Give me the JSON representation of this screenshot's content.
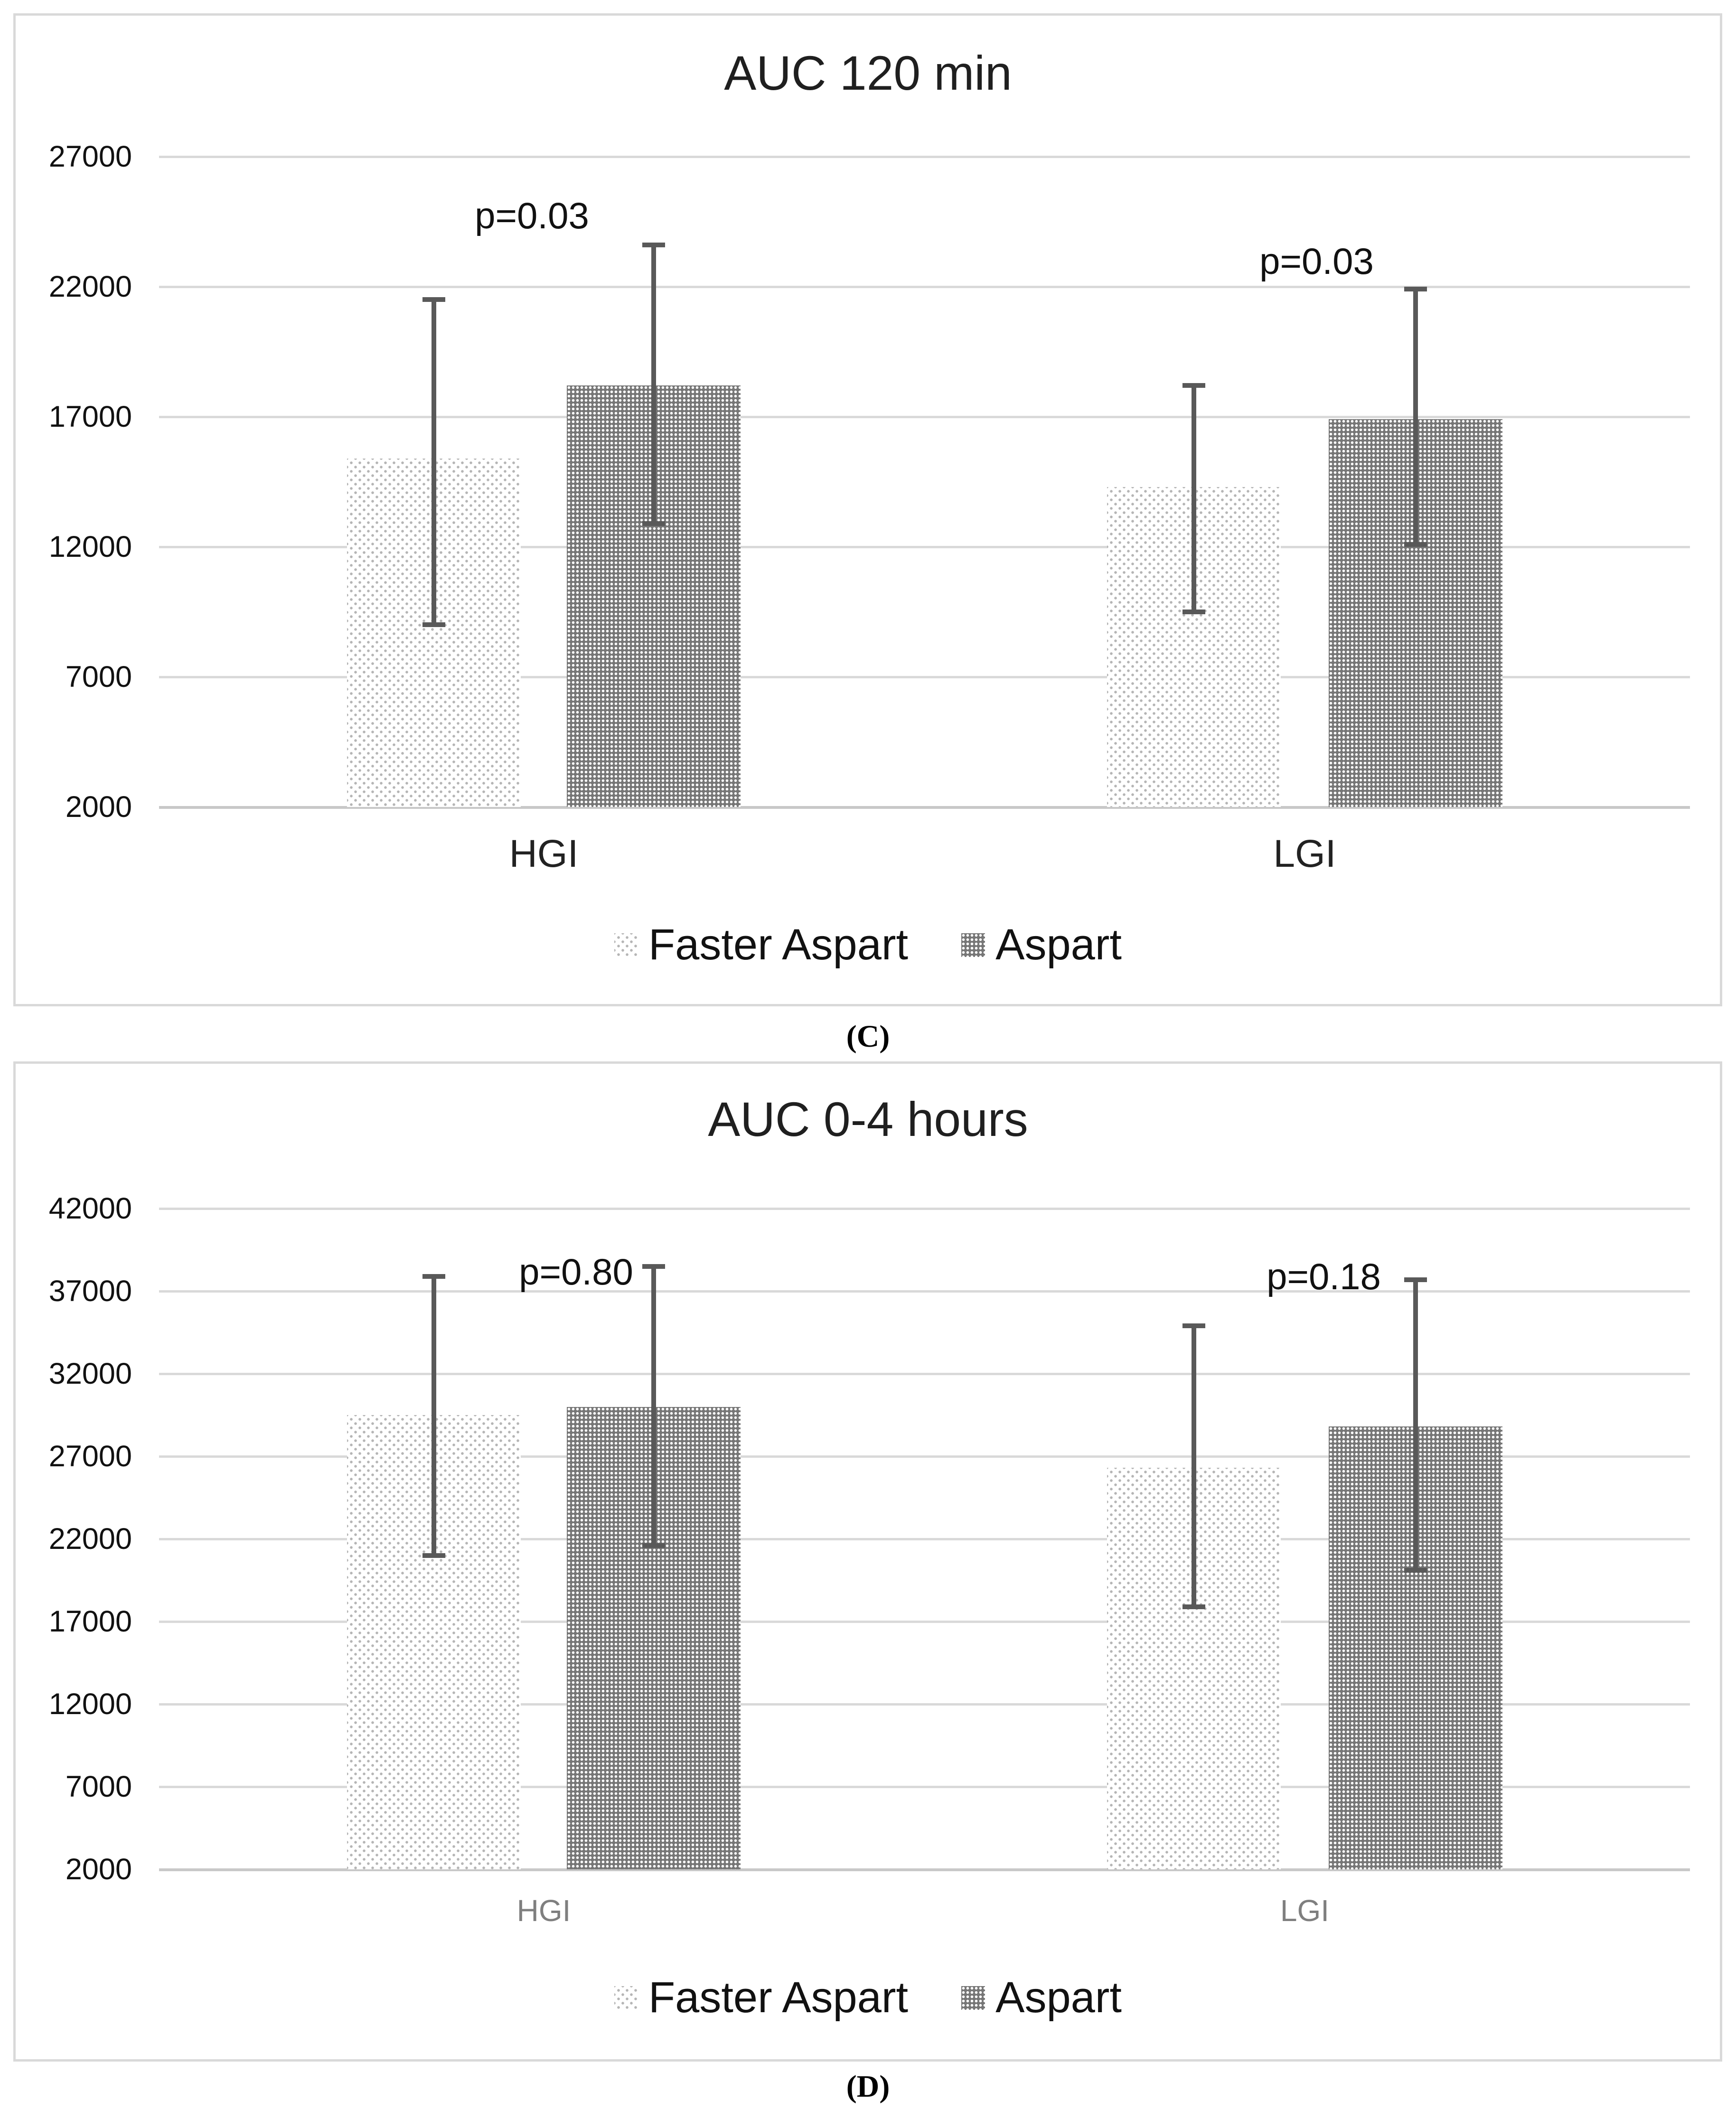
{
  "chart_data": [
    {
      "id": "C",
      "type": "bar",
      "title": "AUC 120 min",
      "caption": "(C)",
      "categories": [
        "HGI",
        "LGI"
      ],
      "series": [
        {
          "name": "Faster Aspart",
          "pattern": "faster",
          "values": [
            15400,
            14300
          ],
          "error_low": [
            9000,
            9500
          ],
          "error_high": [
            21500,
            18200
          ]
        },
        {
          "name": "Aspart",
          "pattern": "aspart",
          "values": [
            18200,
            16900
          ],
          "error_low": [
            12900,
            12100
          ],
          "error_high": [
            23600,
            21900
          ]
        }
      ],
      "annotations": [
        {
          "text": "p=0.03",
          "category": "HGI"
        },
        {
          "text": "p=0.03",
          "category": "LGI"
        }
      ],
      "ylim": [
        2000,
        27000
      ],
      "yticks": [
        2000,
        7000,
        12000,
        17000,
        22000,
        27000
      ],
      "grid": true,
      "legend_position": "bottom"
    },
    {
      "id": "D",
      "type": "bar",
      "title": "AUC 0-4 hours",
      "caption": "(D)",
      "categories": [
        "HGI",
        "LGI"
      ],
      "series": [
        {
          "name": "Faster Aspart",
          "pattern": "faster",
          "values": [
            29500,
            26300
          ],
          "error_low": [
            21000,
            17900
          ],
          "error_high": [
            37900,
            34900
          ]
        },
        {
          "name": "Aspart",
          "pattern": "aspart",
          "values": [
            30000,
            28800
          ],
          "error_low": [
            21600,
            20100
          ],
          "error_high": [
            38500,
            37700
          ]
        }
      ],
      "annotations": [
        {
          "text": "p=0.80",
          "category": "HGI"
        },
        {
          "text": "p=0.18",
          "category": "LGI"
        }
      ],
      "ylim": [
        2000,
        42000
      ],
      "yticks": [
        2000,
        7000,
        12000,
        17000,
        22000,
        27000,
        32000,
        37000,
        42000
      ],
      "grid": true,
      "legend_position": "bottom"
    }
  ],
  "colors": {
    "background": "#ffffff",
    "panel_border": "#d9d9d9",
    "gridline": "#d9d9d9",
    "axis_line": "#c8c8c8",
    "error_bar": "#595959",
    "title_text": "#1f1f1f",
    "tick_text": "#111111",
    "category_dark": "#222222",
    "category_gray": "#7f7f7f",
    "faster_dot": "#b5b5b5",
    "aspart_bg": "#767676",
    "aspart_dot": "#ffffff"
  }
}
